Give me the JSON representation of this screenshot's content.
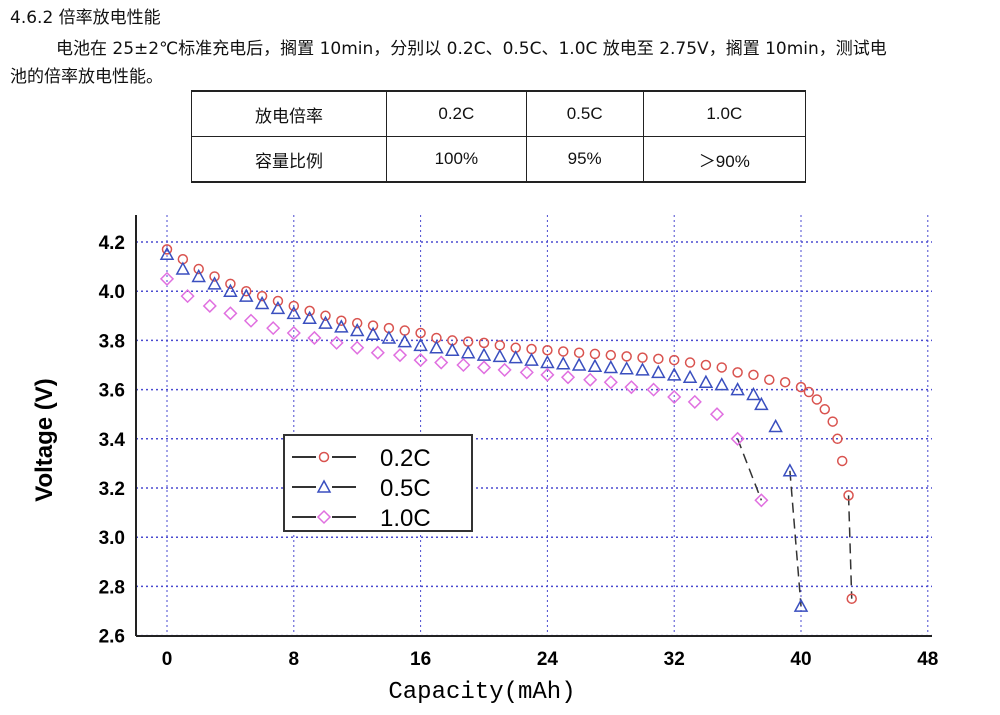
{
  "section": {
    "heading": "4.6.2 倍率放电性能",
    "para_line1": "电池在 25±2℃标准充电后，搁置 10min，分别以 0.2C、0.5C、1.0C 放电至 2.75V，搁置 10min，测试电",
    "para_line2": "池的倍率放电性能。"
  },
  "table": {
    "rows": [
      [
        "放电倍率",
        "0.2C",
        "0.5C",
        "1.0C"
      ],
      [
        "容量比例",
        "100%",
        "95%",
        "＞90%"
      ]
    ]
  },
  "chart_data": {
    "type": "scatter",
    "xlabel": "Capacity(mAh)",
    "ylabel": "Voltage (V)",
    "xlim": [
      -2,
      48
    ],
    "ylim": [
      2.6,
      4.3
    ],
    "xticks": [
      0,
      8,
      16,
      24,
      32,
      40,
      48
    ],
    "yticks": [
      "2.6",
      "2.8",
      "3.0",
      "3.2",
      "3.4",
      "3.6",
      "3.8",
      "4.0",
      "4.2"
    ],
    "grid": true,
    "legend_position": "center-left",
    "series": [
      {
        "name": "0.2C",
        "marker": "circle",
        "color": "#d9534f",
        "x": [
          0,
          1,
          2,
          3,
          4,
          5,
          6,
          7,
          8,
          9,
          10,
          11,
          12,
          13,
          14,
          15,
          16,
          17,
          18,
          19,
          20,
          21,
          22,
          23,
          24,
          25,
          26,
          27,
          28,
          29,
          30,
          31,
          32,
          33,
          34,
          35,
          36,
          37,
          38,
          39,
          40,
          40.5,
          41,
          41.5,
          42,
          42.3,
          42.6,
          43,
          43.2
        ],
        "y": [
          4.17,
          4.13,
          4.09,
          4.06,
          4.03,
          4.0,
          3.98,
          3.96,
          3.94,
          3.92,
          3.9,
          3.88,
          3.87,
          3.86,
          3.85,
          3.84,
          3.83,
          3.81,
          3.8,
          3.795,
          3.79,
          3.78,
          3.77,
          3.765,
          3.76,
          3.755,
          3.75,
          3.745,
          3.74,
          3.735,
          3.73,
          3.725,
          3.72,
          3.71,
          3.7,
          3.69,
          3.67,
          3.66,
          3.64,
          3.63,
          3.61,
          3.59,
          3.56,
          3.52,
          3.47,
          3.4,
          3.31,
          3.17,
          2.75
        ]
      },
      {
        "name": "0.5C",
        "marker": "triangle",
        "color": "#3a4fbf",
        "x": [
          0,
          1,
          2,
          3,
          4,
          5,
          6,
          7,
          8,
          9,
          10,
          11,
          12,
          13,
          14,
          15,
          16,
          17,
          18,
          19,
          20,
          21,
          22,
          23,
          24,
          25,
          26,
          27,
          28,
          29,
          30,
          31,
          32,
          33,
          34,
          35,
          36,
          37,
          37.5,
          38.4,
          39.3,
          40
        ],
        "y": [
          4.15,
          4.09,
          4.06,
          4.03,
          4.0,
          3.98,
          3.95,
          3.93,
          3.91,
          3.89,
          3.87,
          3.855,
          3.84,
          3.825,
          3.81,
          3.795,
          3.78,
          3.77,
          3.76,
          3.75,
          3.74,
          3.735,
          3.73,
          3.72,
          3.71,
          3.705,
          3.7,
          3.695,
          3.69,
          3.685,
          3.68,
          3.67,
          3.66,
          3.65,
          3.63,
          3.62,
          3.6,
          3.58,
          3.54,
          3.45,
          3.27,
          2.72
        ]
      },
      {
        "name": "1.0C",
        "marker": "diamond",
        "color": "#e070e0",
        "x": [
          0,
          1.3,
          2.7,
          4,
          5.3,
          6.7,
          8,
          9.3,
          10.7,
          12,
          13.3,
          14.7,
          16,
          17.3,
          18.7,
          20,
          21.3,
          22.7,
          24,
          25.3,
          26.7,
          28,
          29.3,
          30.7,
          32,
          33.3,
          34.7,
          36,
          37.5
        ],
        "y": [
          4.05,
          3.98,
          3.94,
          3.91,
          3.88,
          3.85,
          3.83,
          3.81,
          3.79,
          3.77,
          3.75,
          3.74,
          3.72,
          3.71,
          3.7,
          3.69,
          3.68,
          3.67,
          3.66,
          3.65,
          3.64,
          3.63,
          3.61,
          3.6,
          3.57,
          3.55,
          3.5,
          3.4,
          3.15
        ]
      }
    ]
  }
}
